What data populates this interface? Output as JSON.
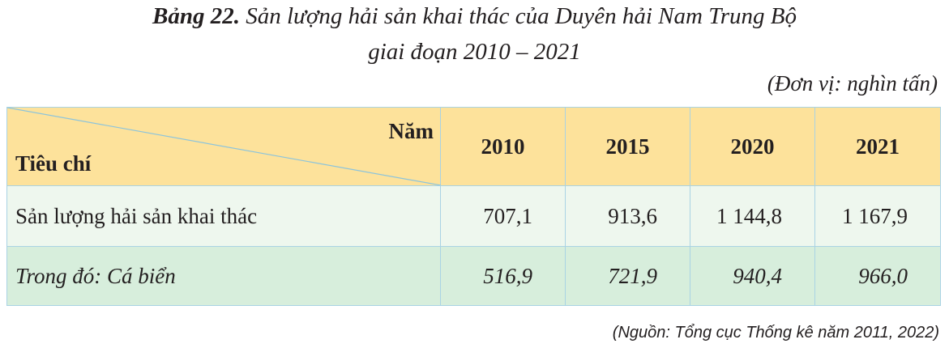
{
  "header": {
    "label": "Bảng 22.",
    "title_line1": "Sản lượng hải sản khai thác của Duyên hải Nam Trung Bộ",
    "title_line2": "giai đoạn 2010 – 2021",
    "unit": "(Đơn vị: nghìn tấn)"
  },
  "table": {
    "corner_top": "Năm",
    "corner_bottom": "Tiêu chí",
    "columns": [
      "2010",
      "2015",
      "2020",
      "2021"
    ],
    "rows": [
      [
        "Sản lượng hải sản khai thác",
        "707,1",
        "913,6",
        "1 144,8",
        "1 167,9"
      ],
      [
        "Trong đó: Cá biển",
        "516,9",
        "721,9",
        "940,4",
        "966,0"
      ]
    ]
  },
  "source": "(Nguồn: Tổng cục Thống kê năm 2011, 2022)"
}
